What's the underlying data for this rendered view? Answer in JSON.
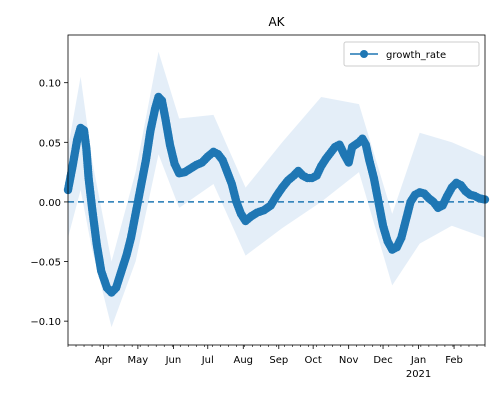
{
  "chart_data": {
    "type": "line",
    "title": "AK",
    "xlabel": "",
    "ylabel": "",
    "x_start": "2020-03-01",
    "x_end": "2021-02-28",
    "xlim": [
      "2020-03-01",
      "2021-02-28"
    ],
    "ylim": [
      -0.12,
      0.14
    ],
    "grid": false,
    "legend_position": "top-right",
    "colors": {
      "series": "#1f77b4",
      "band": "#dbe8f5",
      "reference": "#1f77b4"
    },
    "x_ticks": [
      {
        "date": "2020-04-01",
        "label": "Apr"
      },
      {
        "date": "2020-05-01",
        "label": "May"
      },
      {
        "date": "2020-06-01",
        "label": "Jun"
      },
      {
        "date": "2020-07-01",
        "label": "Jul"
      },
      {
        "date": "2020-08-01",
        "label": "Aug"
      },
      {
        "date": "2020-09-01",
        "label": "Sep"
      },
      {
        "date": "2020-10-01",
        "label": "Oct"
      },
      {
        "date": "2020-11-01",
        "label": "Nov"
      },
      {
        "date": "2020-12-01",
        "label": "Dec"
      },
      {
        "date": "2021-01-01",
        "label": "Jan",
        "sublabel": "2021"
      },
      {
        "date": "2021-02-01",
        "label": "Feb"
      }
    ],
    "y_ticks": [
      {
        "value": 0.1,
        "label": "0.10"
      },
      {
        "value": 0.05,
        "label": "0.05"
      },
      {
        "value": 0.0,
        "label": "0.00"
      },
      {
        "value": -0.05,
        "label": "−0.05"
      },
      {
        "value": -0.1,
        "label": "−0.10"
      }
    ],
    "reference_line": {
      "y": 0.0,
      "style": "dashed"
    },
    "series": [
      {
        "name": "growth_rate",
        "marker": "circle",
        "points": [
          [
            "2020-03-01",
            0.01
          ],
          [
            "2020-03-05",
            0.03
          ],
          [
            "2020-03-09",
            0.052
          ],
          [
            "2020-03-12",
            0.062
          ],
          [
            "2020-03-15",
            0.06
          ],
          [
            "2020-03-17",
            0.045
          ],
          [
            "2020-03-19",
            0.02
          ],
          [
            "2020-03-22",
            -0.005
          ],
          [
            "2020-03-26",
            -0.035
          ],
          [
            "2020-03-30",
            -0.058
          ],
          [
            "2020-04-04",
            -0.072
          ],
          [
            "2020-04-08",
            -0.076
          ],
          [
            "2020-04-12",
            -0.072
          ],
          [
            "2020-04-16",
            -0.06
          ],
          [
            "2020-04-21",
            -0.045
          ],
          [
            "2020-04-25",
            -0.03
          ],
          [
            "2020-04-29",
            -0.01
          ],
          [
            "2020-05-03",
            0.01
          ],
          [
            "2020-05-08",
            0.035
          ],
          [
            "2020-05-12",
            0.06
          ],
          [
            "2020-05-16",
            0.078
          ],
          [
            "2020-05-19",
            0.088
          ],
          [
            "2020-05-22",
            0.085
          ],
          [
            "2020-05-25",
            0.07
          ],
          [
            "2020-05-29",
            0.048
          ],
          [
            "2020-06-02",
            0.032
          ],
          [
            "2020-06-06",
            0.024
          ],
          [
            "2020-06-11",
            0.025
          ],
          [
            "2020-06-16",
            0.028
          ],
          [
            "2020-06-21",
            0.031
          ],
          [
            "2020-06-26",
            0.033
          ],
          [
            "2020-07-01",
            0.038
          ],
          [
            "2020-07-06",
            0.042
          ],
          [
            "2020-07-10",
            0.04
          ],
          [
            "2020-07-14",
            0.035
          ],
          [
            "2020-07-18",
            0.025
          ],
          [
            "2020-07-22",
            0.015
          ],
          [
            "2020-07-26",
            0.0
          ],
          [
            "2020-07-30",
            -0.01
          ],
          [
            "2020-08-03",
            -0.016
          ],
          [
            "2020-08-08",
            -0.012
          ],
          [
            "2020-08-13",
            -0.009
          ],
          [
            "2020-08-19",
            -0.007
          ],
          [
            "2020-08-25",
            -0.003
          ],
          [
            "2020-08-30",
            0.005
          ],
          [
            "2020-09-04",
            0.012
          ],
          [
            "2020-09-09",
            0.018
          ],
          [
            "2020-09-14",
            0.022
          ],
          [
            "2020-09-18",
            0.026
          ],
          [
            "2020-09-22",
            0.022
          ],
          [
            "2020-09-26",
            0.02
          ],
          [
            "2020-09-30",
            0.02
          ],
          [
            "2020-10-04",
            0.022
          ],
          [
            "2020-10-08",
            0.03
          ],
          [
            "2020-10-12",
            0.036
          ],
          [
            "2020-10-16",
            0.041
          ],
          [
            "2020-10-20",
            0.046
          ],
          [
            "2020-10-24",
            0.048
          ],
          [
            "2020-10-28",
            0.04
          ],
          [
            "2020-11-01",
            0.033
          ],
          [
            "2020-11-04",
            0.046
          ],
          [
            "2020-11-07",
            0.048
          ],
          [
            "2020-11-10",
            0.05
          ],
          [
            "2020-11-13",
            0.053
          ],
          [
            "2020-11-16",
            0.048
          ],
          [
            "2020-11-19",
            0.035
          ],
          [
            "2020-11-23",
            0.02
          ],
          [
            "2020-11-27",
            0.0
          ],
          [
            "2020-12-01",
            -0.02
          ],
          [
            "2020-12-05",
            -0.033
          ],
          [
            "2020-12-09",
            -0.04
          ],
          [
            "2020-12-13",
            -0.038
          ],
          [
            "2020-12-17",
            -0.03
          ],
          [
            "2020-12-21",
            -0.015
          ],
          [
            "2020-12-25",
            0.0
          ],
          [
            "2020-12-29",
            0.006
          ],
          [
            "2021-01-02",
            0.008
          ],
          [
            "2021-01-06",
            0.007
          ],
          [
            "2021-01-10",
            0.003
          ],
          [
            "2021-01-14",
            0.0
          ],
          [
            "2021-01-18",
            -0.005
          ],
          [
            "2021-01-22",
            -0.003
          ],
          [
            "2021-01-26",
            0.005
          ],
          [
            "2021-01-30",
            0.012
          ],
          [
            "2021-02-03",
            0.016
          ],
          [
            "2021-02-07",
            0.014
          ],
          [
            "2021-02-11",
            0.009
          ],
          [
            "2021-02-15",
            0.006
          ],
          [
            "2021-02-19",
            0.005
          ],
          [
            "2021-02-23",
            0.003
          ],
          [
            "2021-02-28",
            0.002
          ]
        ],
        "band": {
          "lower": [
            [
              "2020-03-01",
              -0.03
            ],
            [
              "2020-03-12",
              0.01
            ],
            [
              "2020-03-22",
              -0.04
            ],
            [
              "2020-04-08",
              -0.105
            ],
            [
              "2020-04-29",
              -0.05
            ],
            [
              "2020-05-19",
              0.04
            ],
            [
              "2020-06-06",
              -0.005
            ],
            [
              "2020-07-06",
              0.015
            ],
            [
              "2020-08-03",
              -0.045
            ],
            [
              "2020-09-04",
              -0.022
            ],
            [
              "2020-10-08",
              0.0
            ],
            [
              "2020-11-10",
              0.025
            ],
            [
              "2020-12-09",
              -0.07
            ],
            [
              "2021-01-02",
              -0.035
            ],
            [
              "2021-01-30",
              -0.02
            ],
            [
              "2021-02-28",
              -0.03
            ]
          ],
          "upper": [
            [
              "2020-03-01",
              0.045
            ],
            [
              "2020-03-12",
              0.105
            ],
            [
              "2020-03-22",
              0.035
            ],
            [
              "2020-04-08",
              -0.05
            ],
            [
              "2020-04-29",
              0.025
            ],
            [
              "2020-05-19",
              0.126
            ],
            [
              "2020-06-06",
              0.07
            ],
            [
              "2020-07-06",
              0.073
            ],
            [
              "2020-08-03",
              0.012
            ],
            [
              "2020-09-04",
              0.05
            ],
            [
              "2020-10-08",
              0.088
            ],
            [
              "2020-11-10",
              0.082
            ],
            [
              "2020-12-09",
              -0.01
            ],
            [
              "2021-01-02",
              0.058
            ],
            [
              "2021-01-30",
              0.05
            ],
            [
              "2021-02-28",
              0.038
            ]
          ]
        }
      }
    ]
  }
}
